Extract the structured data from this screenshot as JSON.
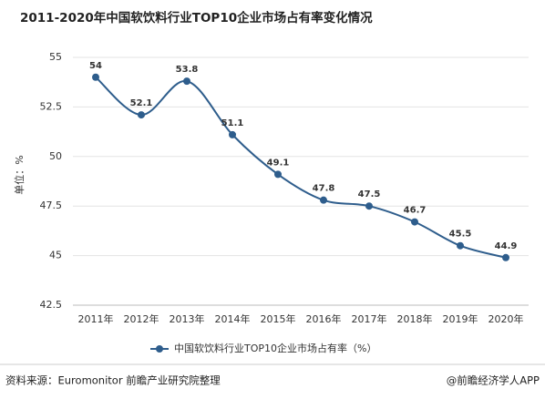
{
  "chart_data": {
    "type": "line",
    "title": "2011-2020年中国软饮料行业TOP10企业市场占有率变化情况",
    "y_label": "单位：%",
    "categories": [
      "2011年",
      "2012年",
      "2013年",
      "2014年",
      "2015年",
      "2016年",
      "2017年",
      "2018年",
      "2019年",
      "2020年"
    ],
    "series": [
      {
        "name": "中国软饮料行业TOP10企业市场占有率（%）",
        "color": "#2e5d8c",
        "values": [
          54,
          52.1,
          53.8,
          51.1,
          49.1,
          47.8,
          47.5,
          46.7,
          45.5,
          44.9
        ]
      }
    ],
    "ylim": [
      42.5,
      55
    ],
    "yticks": [
      42.5,
      45,
      47.5,
      50,
      52.5,
      55
    ],
    "grid": true,
    "smooth": true,
    "legend": "bottom"
  },
  "footer": {
    "source": "资料来源：Euromonitor 前瞻产业研究院整理",
    "credit": "@前瞻经济学人APP"
  }
}
